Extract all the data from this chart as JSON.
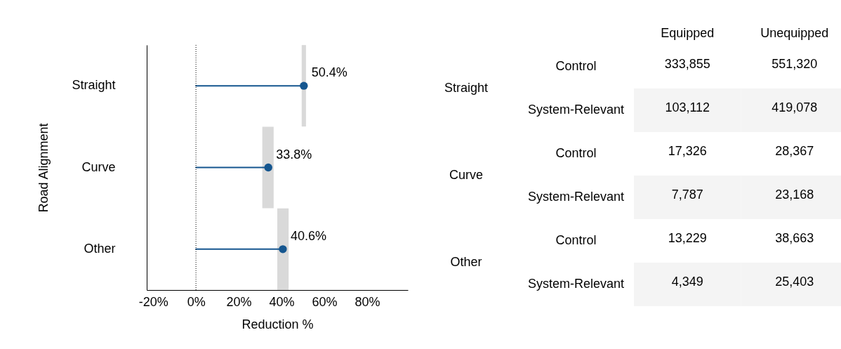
{
  "chart_data": [
    {
      "type": "lollipop",
      "orientation": "horizontal",
      "categories": [
        "Straight",
        "Curve",
        "Other"
      ],
      "series": [
        {
          "color": "#15568f",
          "values": [
            50.4,
            33.8,
            40.6
          ],
          "errors": [
            [
              49.4,
              51.4
            ],
            [
              31,
              36.3
            ],
            [
              38,
              43.3
            ]
          ],
          "value_labels": [
            "50.4%",
            "33.8%",
            "40.6%"
          ]
        }
      ],
      "xlim": [
        -23,
        99
      ],
      "xticks": [
        {
          "value": -20,
          "label": "-20%"
        },
        {
          "value": 0,
          "label": "0%"
        },
        {
          "value": 20,
          "label": "20%"
        },
        {
          "value": 40,
          "label": "40%"
        },
        {
          "value": 60,
          "label": "60%"
        },
        {
          "value": 80,
          "label": "80%"
        }
      ],
      "xlabel": "Reduction %",
      "ylabel": "Road Alignment",
      "marker": "circle",
      "ref_lines": [
        {
          "axis": "x",
          "value": 0,
          "line_style": "dotted",
          "color": "#000000"
        }
      ]
    },
    {
      "type": "other",
      "categories": [
        "Equipped",
        "Unequipped"
      ],
      "y_categories": [
        "Control",
        "System-Relevant",
        "Control",
        "System-Relevant",
        "Control",
        "System-Relevant"
      ],
      "cell_labels": [
        [
          "333,855",
          "551,320"
        ],
        [
          "103,112",
          "419,078"
        ],
        [
          "17,326",
          "28,367"
        ],
        [
          "7,787",
          "23,168"
        ],
        [
          "13,229",
          "38,663"
        ],
        [
          "4,349",
          "25,403"
        ]
      ],
      "annotations": [
        "Straight",
        "Curve",
        "Other"
      ]
    }
  ]
}
